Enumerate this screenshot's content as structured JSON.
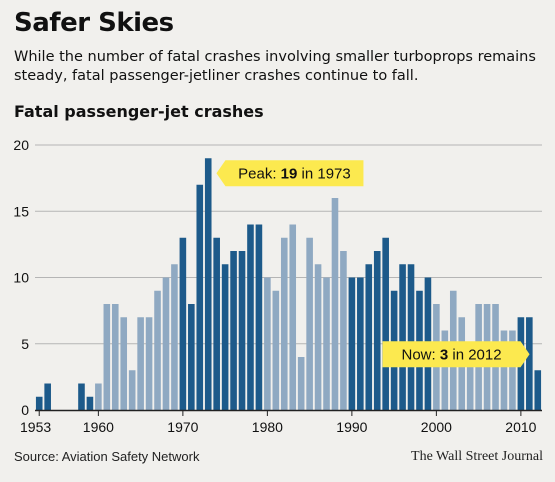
{
  "header": {
    "title": "Safer Skies",
    "subtitle": "While the number of fatal crashes involving smaller turboprops remains steady, fatal passenger-jetliner crashes continue to fall.",
    "chart_label": "Fatal passenger-jet crashes"
  },
  "footer": {
    "source": "Source: Aviation Safety Network",
    "credit": "The Wall Street Journal"
  },
  "colors": {
    "dark": "#1d5a8a",
    "light": "#8fa9c2",
    "callout": "#fce94f",
    "grid": "#b5b5b5",
    "axis": "#222222"
  },
  "chart_data": {
    "type": "bar",
    "title": "Fatal passenger-jet crashes",
    "xlabel": "",
    "ylabel": "",
    "x": [
      1953,
      1954,
      1955,
      1956,
      1957,
      1958,
      1959,
      1960,
      1961,
      1962,
      1963,
      1964,
      1965,
      1966,
      1967,
      1968,
      1969,
      1970,
      1971,
      1972,
      1973,
      1974,
      1975,
      1976,
      1977,
      1978,
      1979,
      1980,
      1981,
      1982,
      1983,
      1984,
      1985,
      1986,
      1987,
      1988,
      1989,
      1990,
      1991,
      1992,
      1993,
      1994,
      1995,
      1996,
      1997,
      1998,
      1999,
      2000,
      2001,
      2002,
      2003,
      2004,
      2005,
      2006,
      2007,
      2008,
      2009,
      2010,
      2011,
      2012
    ],
    "values": [
      1,
      2,
      0,
      0,
      0,
      2,
      1,
      2,
      8,
      8,
      7,
      3,
      7,
      7,
      9,
      10,
      11,
      13,
      8,
      17,
      19,
      13,
      11,
      12,
      12,
      14,
      14,
      10,
      9,
      13,
      14,
      4,
      13,
      11,
      10,
      16,
      12,
      10,
      10,
      11,
      12,
      13,
      9,
      11,
      11,
      9,
      10,
      8,
      6,
      9,
      7,
      4,
      8,
      8,
      8,
      6,
      6,
      7,
      7,
      3
    ],
    "shades": [
      "dark",
      "dark",
      "dark",
      "dark",
      "dark",
      "dark",
      "dark",
      "light",
      "light",
      "light",
      "light",
      "light",
      "light",
      "light",
      "light",
      "light",
      "light",
      "dark",
      "dark",
      "dark",
      "dark",
      "dark",
      "dark",
      "dark",
      "dark",
      "dark",
      "dark",
      "light",
      "light",
      "light",
      "light",
      "light",
      "light",
      "light",
      "light",
      "light",
      "light",
      "dark",
      "dark",
      "dark",
      "dark",
      "dark",
      "dark",
      "dark",
      "dark",
      "dark",
      "dark",
      "light",
      "light",
      "light",
      "light",
      "light",
      "light",
      "light",
      "light",
      "light",
      "light",
      "dark",
      "dark",
      "dark"
    ],
    "ylim": [
      0,
      20
    ],
    "y_ticks": [
      0,
      5,
      10,
      15,
      20
    ],
    "x_tick_labels": [
      "1953",
      "1960",
      "1970",
      "1980",
      "1990",
      "2000",
      "2010"
    ],
    "x_tick_years": [
      1953,
      1960,
      1970,
      1980,
      1990,
      2000,
      2010
    ],
    "grid": true,
    "annotations": [
      {
        "name": "peak",
        "prefix": "Peak: ",
        "value": "19",
        "suffix": " in 1973",
        "year": 1973,
        "pointer": "left"
      },
      {
        "name": "now",
        "prefix": "Now: ",
        "value": "3",
        "suffix": " in 2012",
        "year": 2012,
        "pointer": "right"
      }
    ]
  }
}
